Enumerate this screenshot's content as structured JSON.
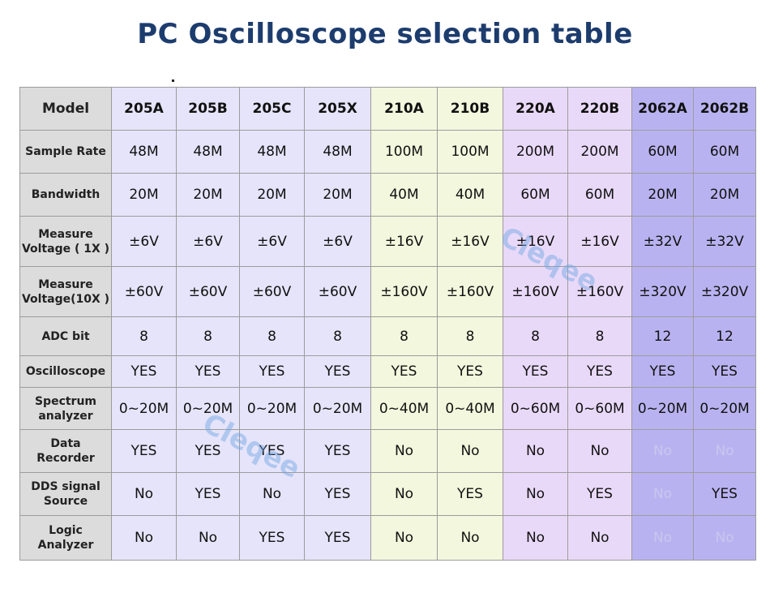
{
  "title": "PC Oscilloscope selection table",
  "watermark": "Cleqee",
  "header_label": "Model",
  "models": [
    "205A",
    "205B",
    "205C",
    "205X",
    "210A",
    "210B",
    "220A",
    "220B",
    "2062A",
    "2062B"
  ],
  "model_groups": [
    "205",
    "205",
    "205",
    "205",
    "210",
    "210",
    "220",
    "220",
    "2062",
    "2062"
  ],
  "rows": [
    {
      "label": "Sample Rate",
      "values": [
        "48M",
        "48M",
        "48M",
        "48M",
        "100M",
        "100M",
        "200M",
        "200M",
        "60M",
        "60M"
      ]
    },
    {
      "label": "Bandwidth",
      "values": [
        "20M",
        "20M",
        "20M",
        "20M",
        "40M",
        "40M",
        "60M",
        "60M",
        "20M",
        "20M"
      ]
    },
    {
      "label": "Measure Voltage ( 1X )",
      "values": [
        "±6V",
        "±6V",
        "±6V",
        "±6V",
        "±16V",
        "±16V",
        "±16V",
        "±16V",
        "±32V",
        "±32V"
      ]
    },
    {
      "label": "Measure Voltage(10X )",
      "values": [
        "±60V",
        "±60V",
        "±60V",
        "±60V",
        "±160V",
        "±160V",
        "±160V",
        "±160V",
        "±320V",
        "±320V"
      ]
    },
    {
      "label": "ADC bit",
      "values": [
        "8",
        "8",
        "8",
        "8",
        "8",
        "8",
        "8",
        "8",
        "12",
        "12"
      ]
    },
    {
      "label": "Oscilloscope",
      "values": [
        "YES",
        "YES",
        "YES",
        "YES",
        "YES",
        "YES",
        "YES",
        "YES",
        "YES",
        "YES"
      ]
    },
    {
      "label": "Spectrum analyzer",
      "values": [
        "0~20M",
        "0~20M",
        "0~20M",
        "0~20M",
        "0~40M",
        "0~40M",
        "0~60M",
        "0~60M",
        "0~20M",
        "0~20M"
      ]
    },
    {
      "label": "Data Recorder",
      "values": [
        "YES",
        "YES",
        "YES",
        "YES",
        "No",
        "No",
        "No",
        "No",
        "No",
        "No"
      ]
    },
    {
      "label": "DDS signal Source",
      "values": [
        "No",
        "YES",
        "No",
        "YES",
        "No",
        "YES",
        "No",
        "YES",
        "No",
        "YES"
      ]
    },
    {
      "label": "Logic Analyzer",
      "values": [
        "No",
        "No",
        "YES",
        "YES",
        "No",
        "No",
        "No",
        "No",
        "No",
        "No"
      ]
    }
  ],
  "colors": {
    "title": "#1d3c6e",
    "label_bg": "#dcdcdc",
    "group_205": "#e6e4fa",
    "group_210": "#f3f7dd",
    "group_220": "#e9d9f8",
    "group_2062": "#b8b3f0",
    "no_text": "#b8b8b8"
  }
}
